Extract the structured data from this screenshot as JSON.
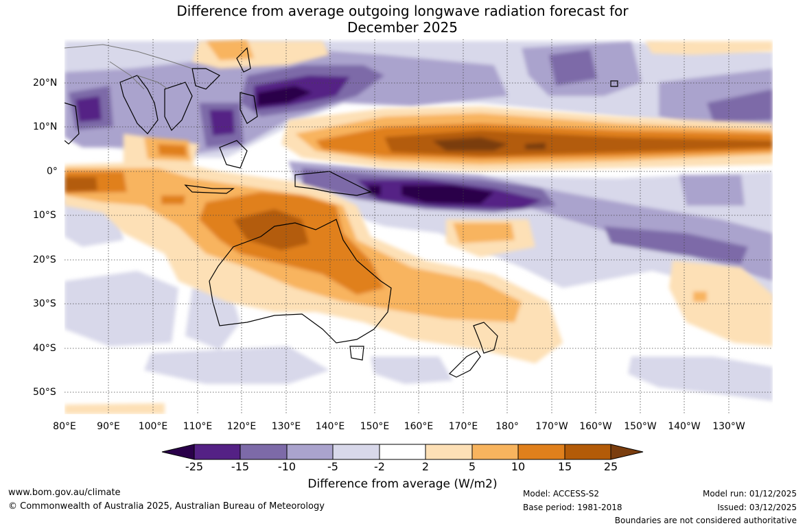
{
  "title": {
    "line1": "Difference from average outgoing longwave radiation forecast for",
    "line2": "December 2025"
  },
  "map": {
    "lon_labels": [
      "80°E",
      "90°E",
      "100°E",
      "110°E",
      "120°E",
      "130°E",
      "140°E",
      "150°E",
      "160°E",
      "170°E",
      "180°",
      "170°W",
      "160°W",
      "150°W",
      "140°W",
      "130°W"
    ],
    "lat_labels": [
      "20°N",
      "10°N",
      "0°",
      "10°S",
      "20°S",
      "30°S",
      "40°S",
      "50°S"
    ],
    "lon_range": [
      80,
      240
    ],
    "lat_range": [
      -55,
      30
    ]
  },
  "colorbar": {
    "colors": [
      "#2a004a",
      "#542185",
      "#7d6aa8",
      "#aaa3cd",
      "#d8d8ea",
      "#ffffff",
      "#fde0b6",
      "#f8b45e",
      "#e0801c",
      "#b35b08",
      "#7a3d0e"
    ],
    "tick_labels": [
      "-25",
      "-15",
      "-10",
      "-5",
      "-2",
      "2",
      "5",
      "10",
      "15",
      "25"
    ],
    "title": "Difference from average (W/m2)"
  },
  "footer": {
    "url": "www.bom.gov.au/climate",
    "copyright": "© Commonwealth of Australia 2025, Australian Bureau of Meteorology",
    "model": "Model: ACCESS-S2",
    "base_period": "Base period: 1981-2018",
    "model_run": "Model run: 01/12/2025",
    "issued": "Issued: 03/12/2025",
    "boundaries": "Boundaries are not considered authoritative"
  }
}
